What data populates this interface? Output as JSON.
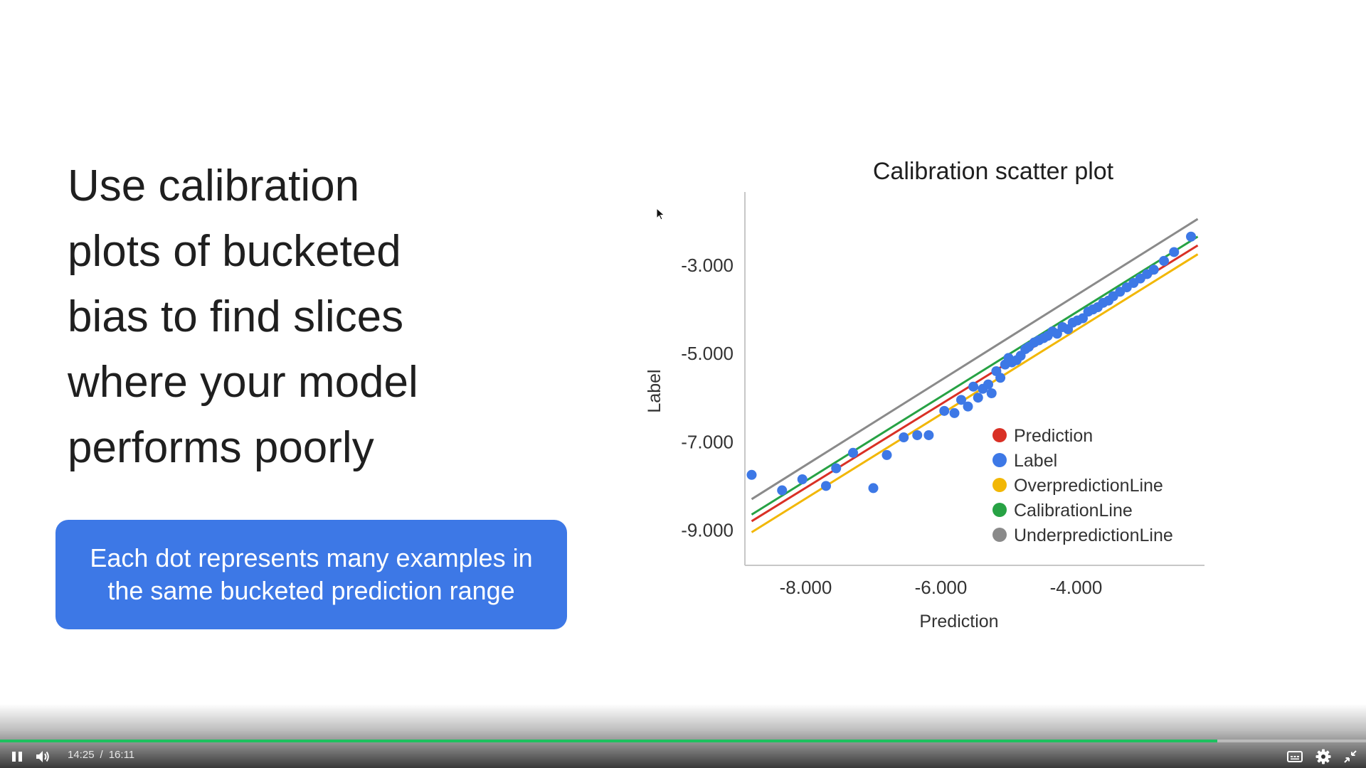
{
  "slide": {
    "headline_lines": [
      "Use calibration",
      "plots of bucketed",
      "bias to find slices",
      "where your model",
      "performs poorly"
    ],
    "callout_lines": [
      "Each dot represents many examples in",
      "the same bucketed prediction range"
    ],
    "callout_color": "#3d78e6"
  },
  "chart_data": {
    "type": "scatter",
    "title": "Calibration scatter plot",
    "xlabel": "Prediction",
    "ylabel": "Label",
    "x_ticks": [
      "-8.000",
      "-6.000",
      "-4.000"
    ],
    "x_tick_values": [
      -8,
      -6,
      -4
    ],
    "y_ticks": [
      "-3.000",
      "-5.000",
      "-7.000",
      "-9.000"
    ],
    "y_tick_values": [
      -3,
      -5,
      -7,
      -9
    ],
    "xlim": [
      -8.9,
      -2.1
    ],
    "ylim": [
      -9.8,
      -1.5
    ],
    "grid": false,
    "legend_placement": "bottom-right",
    "legend": [
      {
        "name": "Prediction",
        "color": "#d93025"
      },
      {
        "name": "Label",
        "color": "#3d78e6"
      },
      {
        "name": "OverpredictionLine",
        "color": "#f2b705"
      },
      {
        "name": "CalibrationLine",
        "color": "#27a244"
      },
      {
        "name": "UnderpredictionLine",
        "color": "#8a8a8a"
      }
    ],
    "lines": [
      {
        "name": "UnderpredictionLine",
        "color": "#8a8a8a",
        "x": [
          -8.8,
          -2.2
        ],
        "y": [
          -8.3,
          -1.95
        ]
      },
      {
        "name": "CalibrationLine",
        "color": "#27a244",
        "x": [
          -8.8,
          -2.2
        ],
        "y": [
          -8.65,
          -2.35
        ]
      },
      {
        "name": "Prediction",
        "color": "#d93025",
        "x": [
          -8.8,
          -2.2
        ],
        "y": [
          -8.8,
          -2.55
        ]
      },
      {
        "name": "OverpredictionLine",
        "color": "#f2b705",
        "x": [
          -8.8,
          -2.2
        ],
        "y": [
          -9.05,
          -2.75
        ]
      }
    ],
    "series": [
      {
        "name": "Label",
        "color": "#3d78e6",
        "x": [
          -8.8,
          -8.35,
          -8.05,
          -7.7,
          -7.55,
          -7.3,
          -7.0,
          -6.8,
          -6.55,
          -6.35,
          -6.18,
          -5.95,
          -5.8,
          -5.7,
          -5.6,
          -5.52,
          -5.45,
          -5.38,
          -5.3,
          -5.25,
          -5.18,
          -5.12,
          -5.05,
          -5.0,
          -4.95,
          -4.88,
          -4.82,
          -4.75,
          -4.7,
          -4.62,
          -4.55,
          -4.48,
          -4.42,
          -4.35,
          -4.28,
          -4.2,
          -4.12,
          -4.05,
          -3.98,
          -3.9,
          -3.82,
          -3.75,
          -3.68,
          -3.6,
          -3.52,
          -3.45,
          -3.35,
          -3.25,
          -3.15,
          -3.05,
          -2.95,
          -2.85,
          -2.7,
          -2.55,
          -2.3
        ],
        "y": [
          -7.75,
          -8.1,
          -7.85,
          -8.0,
          -7.6,
          -7.25,
          -8.05,
          -7.3,
          -6.9,
          -6.85,
          -6.85,
          -6.3,
          -6.35,
          -6.05,
          -6.2,
          -5.75,
          -6.0,
          -5.8,
          -5.7,
          -5.9,
          -5.4,
          -5.55,
          -5.25,
          -5.1,
          -5.2,
          -5.15,
          -5.05,
          -4.9,
          -4.85,
          -4.75,
          -4.7,
          -4.65,
          -4.6,
          -4.5,
          -4.55,
          -4.4,
          -4.45,
          -4.3,
          -4.25,
          -4.2,
          -4.05,
          -4.0,
          -3.95,
          -3.85,
          -3.8,
          -3.7,
          -3.6,
          -3.5,
          -3.4,
          -3.3,
          -3.2,
          -3.1,
          -2.9,
          -2.7,
          -2.35
        ]
      }
    ]
  },
  "player": {
    "current_time": "14:25",
    "separator": "/",
    "duration": "16:11",
    "progress_fraction": 0.891,
    "accent_color": "#1ec05f",
    "icons": [
      "pause-icon",
      "volume-icon",
      "captions-icon",
      "settings-icon",
      "exit-fullscreen-icon"
    ]
  }
}
